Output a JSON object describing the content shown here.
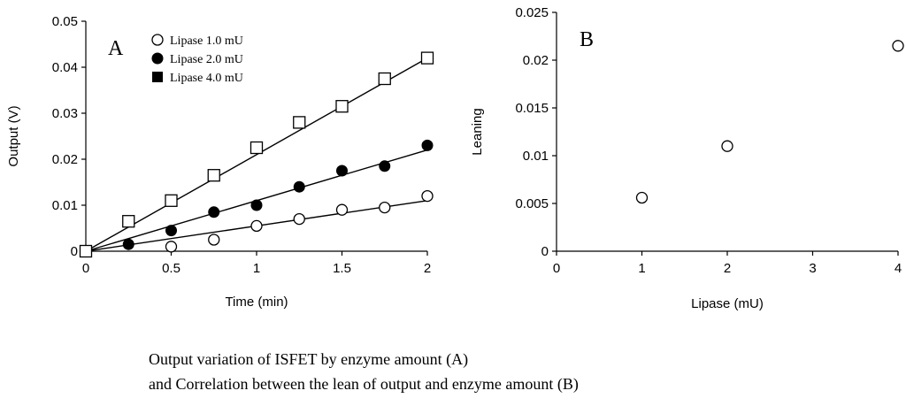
{
  "chart_data": [
    {
      "type": "scatter",
      "panel_label": "A",
      "xlabel": "Time (min)",
      "ylabel": "Output (V)",
      "xlim": [
        0,
        2
      ],
      "ylim": [
        0,
        0.05
      ],
      "x_ticks": [
        "0",
        "0.5",
        "1",
        "1.5",
        "2"
      ],
      "y_ticks": [
        "0",
        "0.01",
        "0.02",
        "0.03",
        "0.04",
        "0.05"
      ],
      "grid": false,
      "legend_position": "top-left",
      "legend": [
        "Lipase 1.0 mU",
        "Lipase 2.0 mU",
        "Lipase 4.0 mU"
      ],
      "series": [
        {
          "name": "Lipase 1.0 mU",
          "marker": "open-circle",
          "x": [
            0,
            0.5,
            0.75,
            1.0,
            1.25,
            1.5,
            1.75,
            2.0
          ],
          "y": [
            0,
            0.001,
            0.0025,
            0.0055,
            0.007,
            0.009,
            0.0095,
            0.012
          ],
          "fit_line": [
            [
              0,
              0
            ],
            [
              2,
              0.011
            ]
          ]
        },
        {
          "name": "Lipase 2.0 mU",
          "marker": "filled-circle",
          "x": [
            0,
            0.25,
            0.5,
            0.75,
            1.0,
            1.25,
            1.5,
            1.75,
            2.0
          ],
          "y": [
            0,
            0.0015,
            0.0045,
            0.0085,
            0.01,
            0.014,
            0.0175,
            0.0185,
            0.023
          ],
          "fit_line": [
            [
              0,
              0
            ],
            [
              2,
              0.022
            ]
          ]
        },
        {
          "name": "Lipase 4.0 mU",
          "marker": "open-square",
          "legend_marker": "filled-square",
          "x": [
            0,
            0.25,
            0.5,
            0.75,
            1.0,
            1.25,
            1.5,
            1.75,
            2.0
          ],
          "y": [
            0,
            0.0065,
            0.011,
            0.0165,
            0.0225,
            0.028,
            0.0315,
            0.0375,
            0.042
          ],
          "fit_line": [
            [
              0,
              0
            ],
            [
              2,
              0.042
            ]
          ]
        }
      ]
    },
    {
      "type": "scatter",
      "panel_label": "B",
      "xlabel": "Lipase (mU)",
      "ylabel": "Leaning",
      "xlim": [
        0,
        4
      ],
      "ylim": [
        0,
        0.025
      ],
      "x_ticks": [
        "0",
        "1",
        "2",
        "3",
        "4"
      ],
      "y_ticks": [
        "0",
        "0.005",
        "0.01",
        "0.015",
        "0.02",
        "0.025"
      ],
      "grid": false,
      "series": [
        {
          "marker": "open-circle",
          "x": [
            1,
            2,
            4
          ],
          "y": [
            0.0056,
            0.011,
            0.0215
          ]
        }
      ]
    }
  ],
  "caption": {
    "line1": "Output variation of ISFET by enzyme amount (A)",
    "line2": "and Correlation between the lean of output and enzyme amount (B)"
  }
}
